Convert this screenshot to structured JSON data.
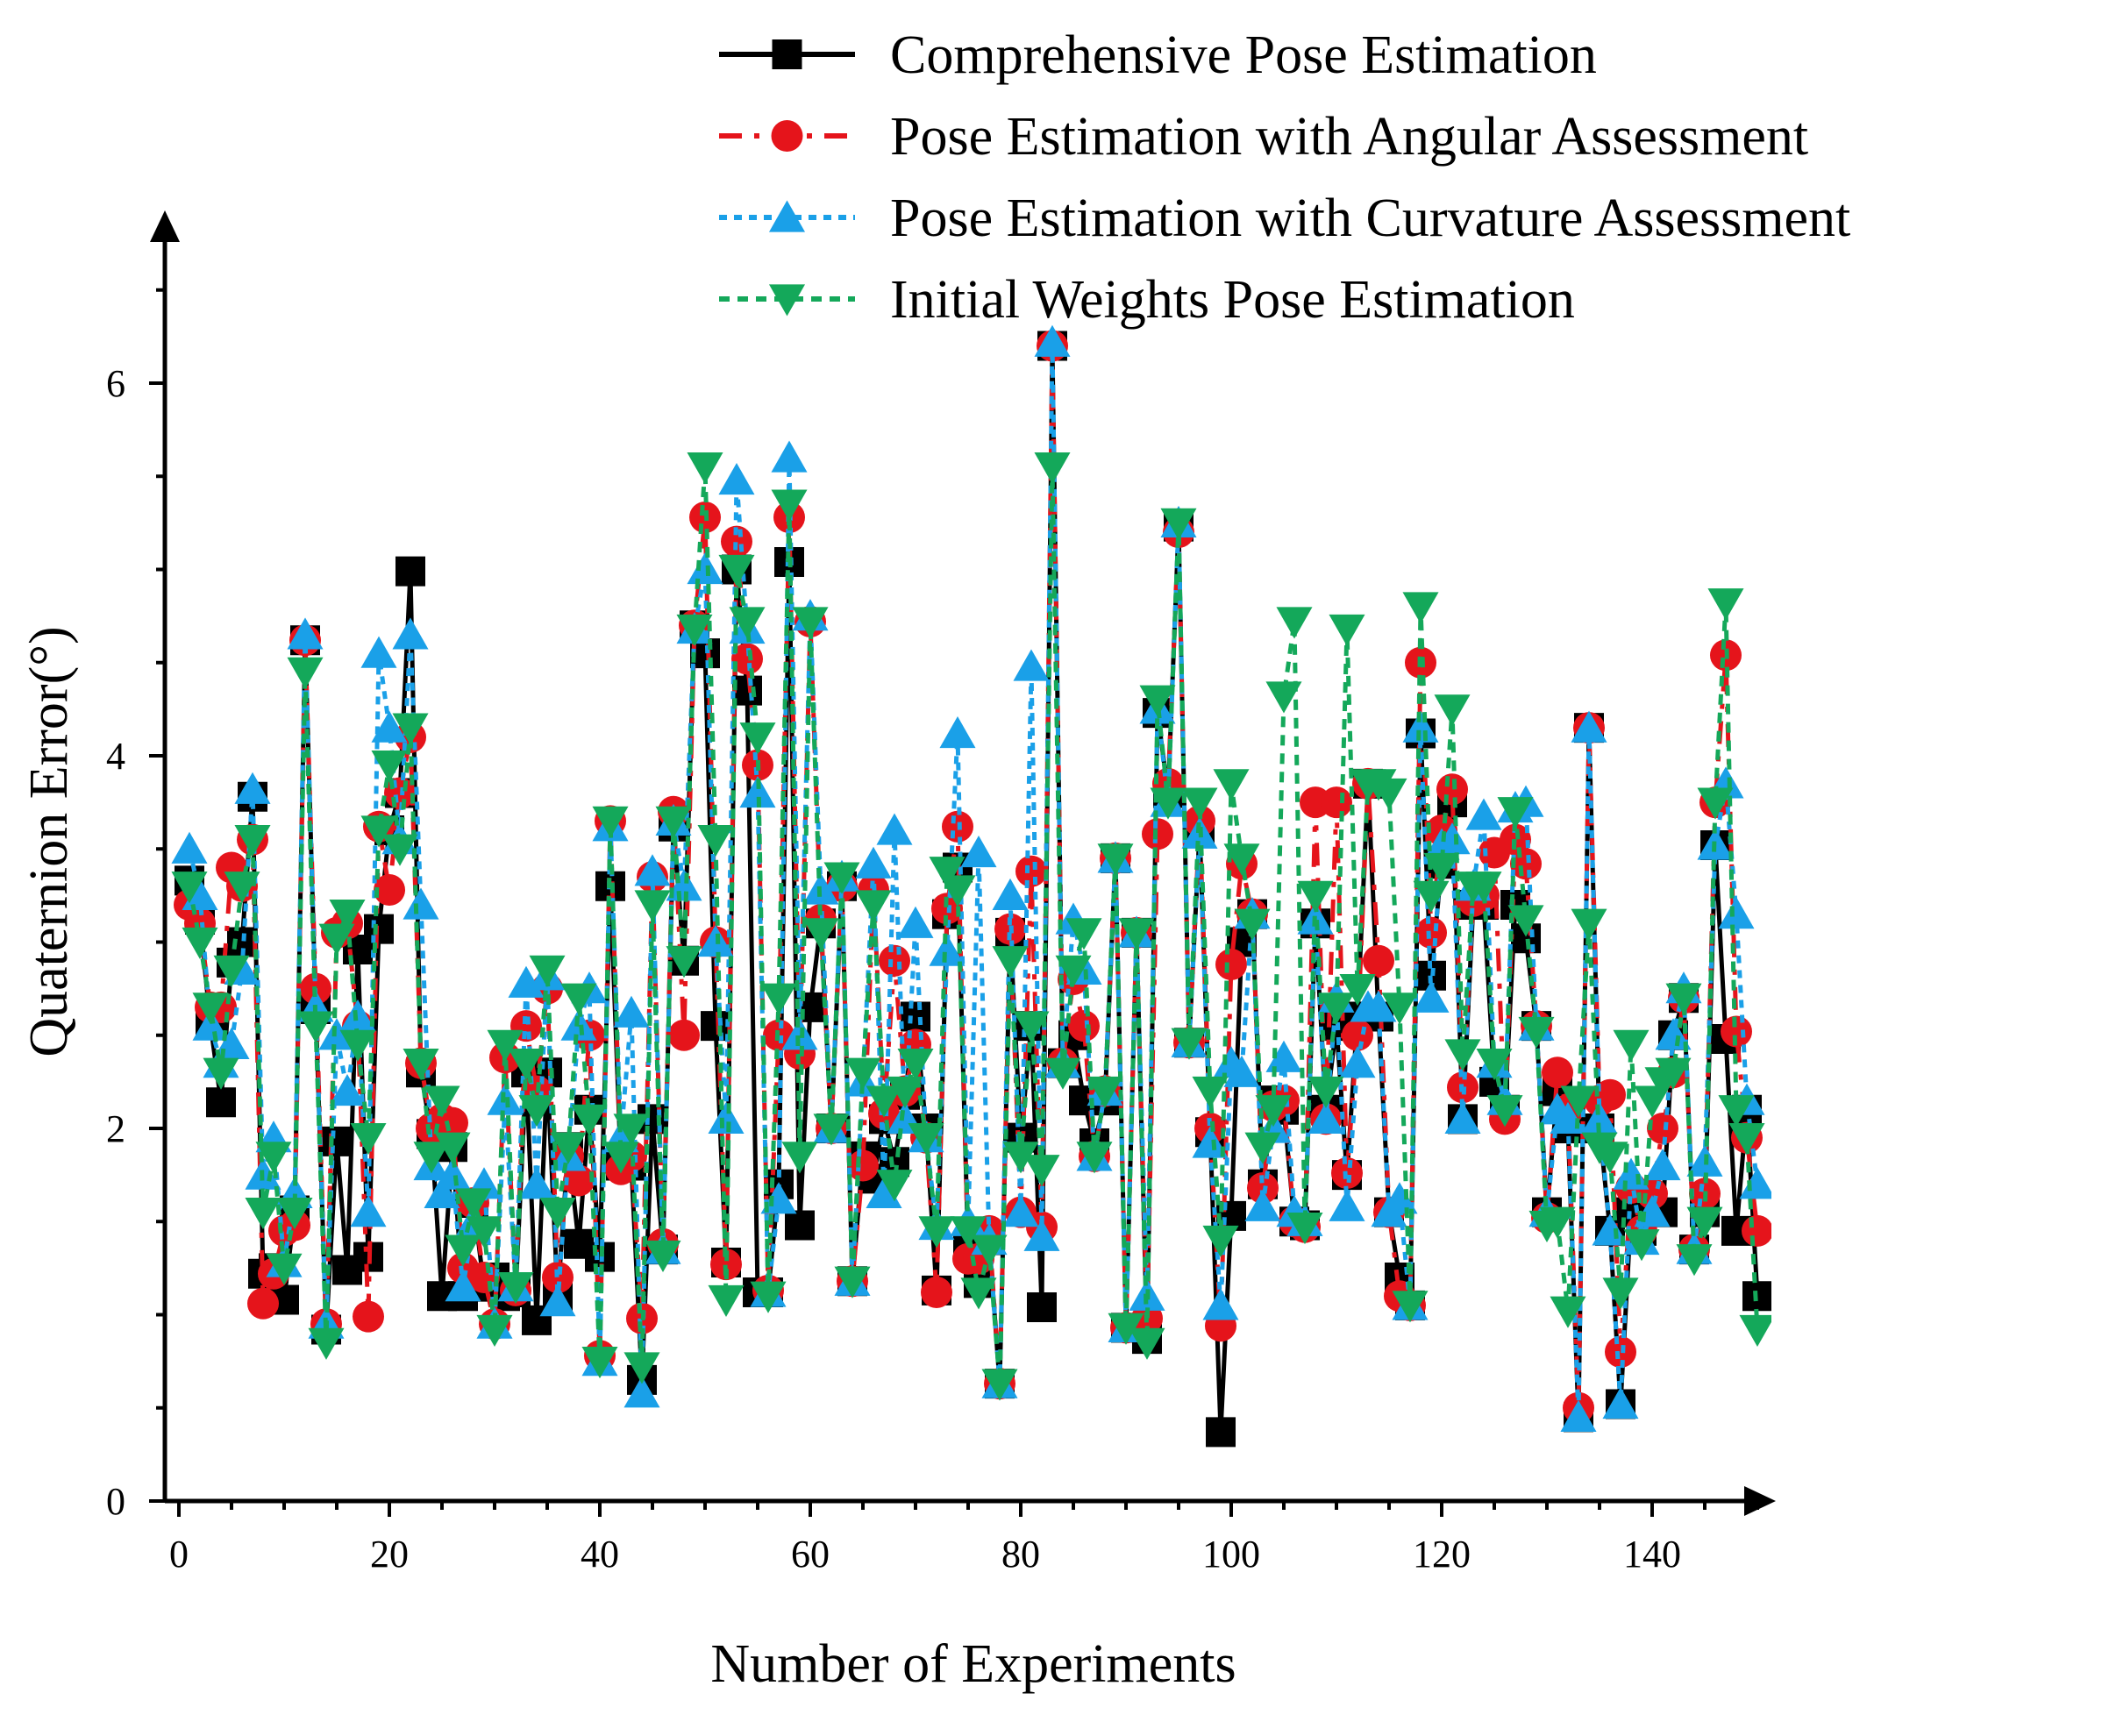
{
  "chart_data": {
    "type": "line",
    "title": "",
    "xlabel": "Number of Experiments",
    "ylabel": "Quaternion Error(°)",
    "xlim": [
      -1,
      150
    ],
    "ylim": [
      0,
      6.8
    ],
    "xticks": [
      0,
      20,
      40,
      60,
      80,
      100,
      120,
      140
    ],
    "xtick_labels": [
      "0",
      "20",
      "40",
      "60",
      "80",
      "100",
      "120",
      "140"
    ],
    "yticks": [
      0,
      2,
      4,
      6
    ],
    "ytick_labels": [
      "0",
      "2",
      "4",
      "6"
    ],
    "grid": false,
    "legend_position": "top-right",
    "x": [
      1,
      2,
      3,
      4,
      5,
      6,
      7,
      8,
      9,
      10,
      11,
      12,
      13,
      14,
      15,
      16,
      17,
      18,
      19,
      20,
      21,
      22,
      23,
      24,
      25,
      26,
      27,
      28,
      29,
      30,
      31,
      32,
      33,
      34,
      35,
      36,
      37,
      38,
      39,
      40,
      41,
      42,
      43,
      44,
      45,
      46,
      47,
      48,
      49,
      50,
      51,
      52,
      53,
      54,
      55,
      56,
      57,
      58,
      59,
      60,
      61,
      62,
      63,
      64,
      65,
      66,
      67,
      68,
      69,
      70,
      71,
      72,
      73,
      74,
      75,
      76,
      77,
      78,
      79,
      80,
      81,
      82,
      83,
      84,
      85,
      86,
      87,
      88,
      89,
      90,
      91,
      92,
      93,
      94,
      95,
      96,
      97,
      98,
      99,
      100,
      101,
      102,
      103,
      104,
      105,
      106,
      107,
      108,
      109,
      110,
      111,
      112,
      113,
      114,
      115,
      116,
      117,
      118,
      119,
      120,
      121,
      122,
      123,
      124,
      125,
      126,
      127,
      128,
      129,
      130,
      131,
      132,
      133,
      134,
      135,
      136,
      137,
      138,
      139,
      140,
      141,
      142,
      143,
      144,
      145,
      146,
      147,
      148,
      149,
      150
    ],
    "series": [
      {
        "name": "Comprehensive Pose Estimation",
        "color": "#000000",
        "dash": "solid",
        "marker": "square",
        "values": [
          3.33,
          3.12,
          2.56,
          2.14,
          2.89,
          3.0,
          3.78,
          1.22,
          1.25,
          1.08,
          1.56,
          4.62,
          2.64,
          0.92,
          1.93,
          1.24,
          2.96,
          1.31,
          3.07,
          3.6,
          3.8,
          4.99,
          2.3,
          1.97,
          1.1,
          1.9,
          1.1,
          1.6,
          1.15,
          1.2,
          1.1,
          1.12,
          2.3,
          0.97,
          2.3,
          1.09,
          1.9,
          1.38,
          2.1,
          1.31,
          3.3,
          1.8,
          1.8,
          0.65,
          2.05,
          1.35,
          3.62,
          2.9,
          4.7,
          4.55,
          2.55,
          1.28,
          5.0,
          4.35,
          1.12,
          1.12,
          1.7,
          5.04,
          1.48,
          2.65,
          3.1,
          2.0,
          3.3,
          1.18,
          1.85,
          1.73,
          2.05,
          1.82,
          2.18,
          2.6,
          2.0,
          1.13,
          3.15,
          3.4,
          1.35,
          1.17,
          1.4,
          0.63,
          3.05,
          1.95,
          2.55,
          1.04,
          6.2,
          2.35,
          2.5,
          2.15,
          1.92,
          2.15,
          3.45,
          0.93,
          3.05,
          0.87,
          4.23,
          3.8,
          5.23,
          2.46,
          3.6,
          1.98,
          0.37,
          1.53,
          3.0,
          3.15,
          1.7,
          2.15,
          2.1,
          1.5,
          1.48,
          3.1,
          2.1,
          2.55,
          1.75,
          2.6,
          3.85,
          2.6,
          1.55,
          1.2,
          1.05,
          4.12,
          2.82,
          3.42,
          3.75,
          2.05,
          3.2,
          3.2,
          2.25,
          2.1,
          3.2,
          3.02,
          2.55,
          1.55,
          2.2,
          2.0,
          0.45,
          4.15,
          2.0,
          1.45,
          0.52,
          1.55,
          1.45,
          1.6,
          1.55,
          2.5,
          2.7,
          1.35,
          1.55,
          3.52,
          2.48,
          1.45,
          2.1,
          1.1
        ]
      },
      {
        "name": "Pose Estimation with Angular Assessment",
        "color": "#e5141b",
        "dash": "dashdot",
        "marker": "circle",
        "values": [
          3.2,
          3.1,
          2.65,
          2.65,
          3.4,
          3.3,
          3.55,
          1.06,
          1.22,
          1.45,
          1.48,
          4.62,
          2.75,
          0.95,
          3.05,
          3.1,
          2.55,
          0.99,
          3.62,
          3.28,
          3.8,
          4.1,
          2.35,
          2.0,
          2.05,
          2.03,
          1.25,
          1.6,
          1.2,
          0.95,
          2.38,
          1.13,
          2.55,
          2.2,
          2.75,
          1.2,
          1.85,
          1.72,
          2.5,
          0.78,
          3.65,
          1.78,
          1.85,
          0.98,
          3.35,
          1.38,
          3.7,
          2.5,
          4.7,
          5.28,
          3.0,
          1.27,
          5.15,
          4.52,
          3.95,
          1.13,
          2.5,
          5.28,
          2.4,
          4.72,
          3.12,
          2.0,
          3.3,
          1.18,
          1.8,
          3.28,
          2.08,
          2.9,
          2.2,
          2.45,
          1.95,
          1.12,
          3.18,
          3.62,
          1.3,
          1.3,
          1.45,
          0.63,
          3.07,
          1.55,
          3.38,
          1.47,
          6.2,
          2.35,
          2.8,
          2.55,
          1.85,
          2.2,
          3.45,
          0.93,
          3.05,
          0.98,
          3.58,
          3.85,
          5.2,
          2.46,
          3.65,
          2.0,
          0.94,
          2.88,
          3.42,
          3.15,
          1.68,
          2.12,
          2.15,
          1.5,
          1.47,
          3.75,
          2.05,
          3.75,
          1.76,
          2.5,
          3.85,
          2.9,
          1.55,
          1.1,
          1.05,
          4.5,
          3.05,
          3.6,
          3.82,
          2.22,
          3.22,
          3.25,
          3.48,
          2.05,
          3.55,
          3.42,
          2.55,
          1.52,
          2.3,
          2.1,
          0.5,
          4.15,
          2.15,
          2.18,
          0.8,
          1.68,
          1.45,
          1.65,
          2.0,
          2.3,
          2.7,
          1.35,
          1.65,
          3.75,
          4.54,
          2.52,
          1.95,
          1.45
        ]
      },
      {
        "name": "Pose Estimation with Curvature Assessment",
        "color": "#1aa0e8",
        "dash": "dotted",
        "marker": "triangle-up",
        "values": [
          3.5,
          3.25,
          2.55,
          2.35,
          2.45,
          2.85,
          3.82,
          1.75,
          1.95,
          1.28,
          1.65,
          4.65,
          2.65,
          0.95,
          2.5,
          2.2,
          2.6,
          1.55,
          4.55,
          4.15,
          3.55,
          4.65,
          3.2,
          1.8,
          1.65,
          1.75,
          1.15,
          1.5,
          1.7,
          0.95,
          2.15,
          1.15,
          2.78,
          1.7,
          2.82,
          1.07,
          1.85,
          2.55,
          2.75,
          0.75,
          3.62,
          1.95,
          2.62,
          0.58,
          3.38,
          1.35,
          3.65,
          3.3,
          4.68,
          5.0,
          3.0,
          2.05,
          5.48,
          4.68,
          3.8,
          1.12,
          1.62,
          5.6,
          2.5,
          4.75,
          3.28,
          2.0,
          3.35,
          1.18,
          2.25,
          3.42,
          1.65,
          3.6,
          2.05,
          3.1,
          1.95,
          1.48,
          2.95,
          4.12,
          1.5,
          3.48,
          1.4,
          0.63,
          3.25,
          1.55,
          4.48,
          1.42,
          6.22,
          2.35,
          3.12,
          2.85,
          1.85,
          2.2,
          3.45,
          0.93,
          3.05,
          1.1,
          4.25,
          3.75,
          5.25,
          2.46,
          3.58,
          1.92,
          1.05,
          2.35,
          2.3,
          3.15,
          1.58,
          2.0,
          2.38,
          1.55,
          1.5,
          3.12,
          2.05,
          2.7,
          1.58,
          2.35,
          2.65,
          2.65,
          1.55,
          1.62,
          1.05,
          4.15,
          2.7,
          3.52,
          3.55,
          2.05,
          3.3,
          3.68,
          2.35,
          2.15,
          3.72,
          3.75,
          2.55,
          1.55,
          2.1,
          2.05,
          0.45,
          4.15,
          2.05,
          1.45,
          0.52,
          1.75,
          1.4,
          1.55,
          1.8,
          2.5,
          2.75,
          1.35,
          1.82,
          3.52,
          3.85,
          3.15,
          2.15,
          1.7
        ]
      },
      {
        "name": "Initial Weights Pose Estimation",
        "color": "#14a85a",
        "dash": "dashed",
        "marker": "triangle-down",
        "values": [
          3.3,
          3.0,
          2.65,
          2.3,
          2.85,
          3.3,
          3.55,
          1.55,
          1.85,
          1.25,
          1.55,
          4.45,
          2.55,
          0.85,
          3.02,
          3.15,
          2.45,
          1.95,
          3.6,
          3.95,
          3.5,
          4.15,
          2.35,
          1.85,
          2.15,
          1.9,
          1.35,
          1.6,
          1.45,
          0.92,
          2.45,
          1.15,
          2.35,
          2.1,
          2.85,
          1.55,
          1.9,
          2.7,
          2.05,
          0.75,
          3.65,
          1.85,
          2.0,
          0.72,
          3.2,
          1.32,
          3.65,
          2.9,
          4.68,
          5.55,
          3.55,
          1.08,
          5.0,
          4.72,
          4.1,
          1.1,
          2.7,
          5.35,
          1.85,
          4.72,
          3.05,
          2.0,
          3.35,
          1.18,
          2.3,
          3.2,
          2.15,
          1.7,
          2.2,
          2.35,
          1.95,
          1.45,
          3.38,
          3.28,
          1.45,
          1.12,
          1.35,
          0.63,
          2.9,
          1.85,
          2.55,
          1.78,
          5.55,
          2.3,
          2.85,
          3.05,
          1.85,
          2.2,
          3.45,
          0.93,
          3.05,
          0.85,
          4.3,
          3.75,
          5.25,
          2.46,
          3.75,
          2.2,
          1.4,
          3.85,
          3.45,
          3.1,
          1.9,
          2.1,
          4.32,
          4.72,
          1.47,
          3.25,
          2.2,
          2.65,
          4.68,
          2.75,
          3.85,
          3.85,
          3.8,
          2.65,
          1.05,
          4.8,
          3.25,
          3.4,
          4.25,
          2.4,
          3.3,
          3.3,
          2.35,
          2.1,
          3.7,
          3.12,
          2.52,
          1.48,
          1.5,
          1.02,
          2.15,
          3.1,
          1.9,
          1.85,
          1.12,
          2.45,
          1.38,
          2.15,
          2.25,
          2.3,
          2.7,
          1.3,
          1.5,
          3.75,
          4.82,
          2.1,
          1.95,
          0.92
        ]
      }
    ]
  }
}
